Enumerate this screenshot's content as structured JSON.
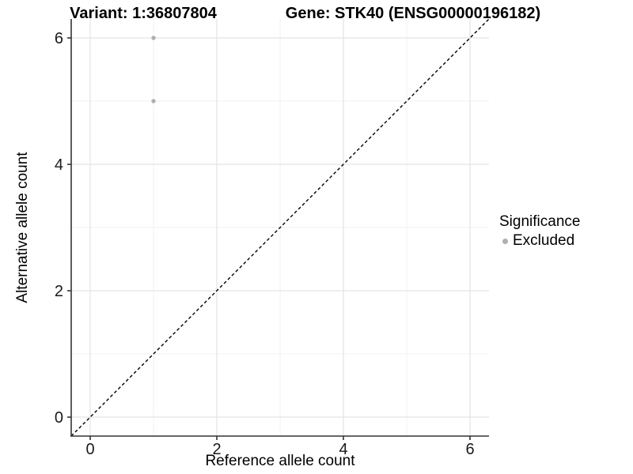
{
  "chart_data": {
    "type": "scatter",
    "titles": {
      "left": "Variant: 1:36807804",
      "right": "Gene: STK40 (ENSG00000196182)"
    },
    "xlabel": "Reference allele count",
    "ylabel": "Alternative allele count",
    "xlim": [
      -0.3,
      6.3
    ],
    "ylim": [
      -0.3,
      6.3
    ],
    "x_major_ticks": [
      0,
      2,
      4,
      6
    ],
    "x_minor_ticks": [
      1,
      3,
      5
    ],
    "y_major_ticks": [
      0,
      2,
      4,
      6
    ],
    "y_minor_ticks": [
      1,
      3,
      5
    ],
    "grid": "on",
    "legend_position": "right",
    "legend": {
      "title": "Significance",
      "items": [
        {
          "label": "Excluded",
          "color": "#b0b0b0"
        }
      ]
    },
    "series": [
      {
        "name": "Excluded",
        "color": "#b0b0b0",
        "points": [
          {
            "x": 1,
            "y": 6
          },
          {
            "x": 1,
            "y": 5
          }
        ]
      }
    ],
    "reference_line": {
      "slope": 1,
      "intercept": 0,
      "style": "dashed",
      "color": "#000000"
    }
  },
  "colors": {
    "background": "#ffffff",
    "grid_major": "#e3e3e3",
    "grid_minor": "#f0f0f0",
    "axis_line": "#333333",
    "tick_label": "#1a1a1a",
    "point": "#b0b0b0",
    "diagonal": "#000000"
  }
}
